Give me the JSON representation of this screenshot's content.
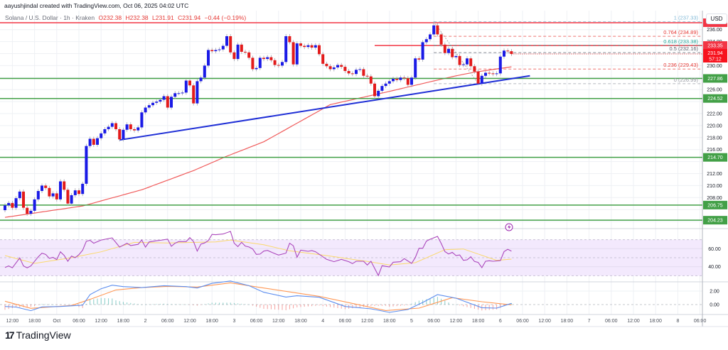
{
  "header": {
    "credit": "aayushjindal created with TradingView.com, Oct 06, 2025 04:02 UTC",
    "symbol": "Solana / U.S. Dollar · 1h · Kraken",
    "open": "O232.38",
    "high": "H232.38",
    "low": "L231.91",
    "close": "C231.94",
    "change": "−0.44 (−0.19%)"
  },
  "currency_label": "USD",
  "brand": {
    "name": "TradingView"
  },
  "colors": {
    "up": "#1a1ae6",
    "down": "#e31b1b",
    "ma": "#f05a5a",
    "trendline": "#1f2fd6",
    "support": "#43a047",
    "resistance": "#f23645",
    "rsi": "#ab47bc",
    "rsi_ma": "#fbd96b",
    "macd": "#5b8def",
    "signal": "#ff9855",
    "hist_up": "#26a69a",
    "hist_down": "#ef5350",
    "accent": "#2962ff"
  },
  "chart_data": {
    "type": "candlestick",
    "interval": "1h",
    "first_open": 205.9,
    "closes": [
      206.7,
      207.1,
      206.3,
      207.9,
      209.0,
      206.3,
      205.3,
      205.8,
      207.7,
      209.1,
      210.0,
      209.6,
      208.2,
      208.7,
      207.7,
      210.7,
      209.3,
      207.0,
      208.4,
      209.2,
      208.6,
      210.3,
      216.6,
      217.8,
      216.8,
      217.9,
      218.7,
      219.4,
      219.8,
      220.4,
      219.4,
      217.7,
      219.3,
      220.2,
      219.4,
      219.2,
      219.7,
      222.2,
      223.0,
      223.4,
      223.8,
      224.0,
      224.3,
      224.9,
      223.0,
      224.8,
      225.4,
      225.4,
      225.5,
      227.5,
      226.7,
      223.7,
      227.4,
      228.0,
      230.0,
      232.6,
      232.4,
      232.6,
      232.7,
      233.3,
      234.9,
      232.2,
      231.1,
      233.5,
      232.3,
      232.2,
      231.3,
      229.4,
      229.6,
      231.3,
      231.1,
      231.4,
      230.9,
      230.1,
      230.0,
      230.6,
      234.9,
      233.9,
      230.2,
      233.7,
      233.3,
      233.1,
      233.4,
      233.0,
      233.4,
      231.9,
      230.3,
      229.9,
      229.4,
      229.7,
      230.1,
      229.8,
      229.1,
      228.7,
      228.6,
      229.3,
      229.4,
      228.3,
      228.2,
      227.0,
      224.9,
      225.8,
      226.6,
      227.0,
      227.4,
      227.8,
      227.6,
      228.0,
      227.9,
      226.8,
      228.0,
      231.2,
      231.0,
      233.9,
      234.4,
      235.2,
      236.7,
      235.2,
      233.5,
      232.1,
      232.8,
      231.4,
      231.6,
      230.1,
      230.2,
      231.2,
      229.9,
      229.0,
      227.0,
      228.3,
      228.8,
      228.7,
      228.6,
      228.7,
      231.5,
      232.5,
      232.4,
      231.94
    ],
    "wick_extremes": [
      {
        "i": 116,
        "high": 237.33
      },
      {
        "i": 128,
        "low": 226.99
      }
    ],
    "moving_average": [
      [
        0,
        204.7
      ],
      [
        21,
        206.6
      ],
      [
        37,
        209.3
      ],
      [
        51,
        212.5
      ],
      [
        60,
        214.9
      ],
      [
        70,
        217.3
      ],
      [
        88,
        223.5
      ],
      [
        104,
        225.7
      ],
      [
        115,
        227.3
      ],
      [
        122,
        228.3
      ],
      [
        127,
        228.9
      ],
      [
        137,
        229.8
      ]
    ],
    "trendline": {
      "start": {
        "i": 31,
        "price": 217.6
      },
      "end": {
        "i": 142,
        "price": 228.3
      }
    },
    "horizontal_levels": [
      {
        "price": 237.15,
        "kind": "resistance",
        "label": ""
      },
      {
        "price": 233.35,
        "kind": "resistance",
        "label": "233.35",
        "from_i": 100
      },
      {
        "price": 227.86,
        "kind": "support",
        "label": "227.86"
      },
      {
        "price": 224.52,
        "kind": "support",
        "label": "224.52"
      },
      {
        "price": 214.7,
        "kind": "support",
        "label": "214.70"
      },
      {
        "price": 206.75,
        "kind": "support",
        "label": "206.75"
      },
      {
        "price": 204.23,
        "kind": "support",
        "label": "204.23"
      }
    ],
    "last_price": {
      "label": "231.94",
      "countdown": "57:12",
      "price": 231.94
    },
    "fibonacci": {
      "from_i": 116,
      "to_i": 128,
      "levels": [
        {
          "ratio": "1",
          "price": 237.33,
          "label": "1 (237.33)",
          "color": "#7fb8d6"
        },
        {
          "ratio": "0.764",
          "price": 234.89,
          "label": "0.764 (234.89)",
          "color": "#e53935"
        },
        {
          "ratio": "0.618",
          "price": 233.38,
          "label": "0.618 (233.38)",
          "color": "#26a69a"
        },
        {
          "ratio": "0.5",
          "price": 232.16,
          "label": "0.5 (232.16)",
          "color": "#555a66"
        },
        {
          "ratio": "0.236",
          "price": 229.43,
          "label": "0.236 (229.43)",
          "color": "#e53935"
        },
        {
          "ratio": "0",
          "price": 226.99,
          "label": "0 (226.99)",
          "color": "#9598a1"
        }
      ]
    },
    "price_axis": {
      "ticks": [
        "236.00",
        "234.00",
        "230.00",
        "226.00",
        "222.00",
        "220.00",
        "218.00",
        "216.00",
        "212.00",
        "210.00",
        "208.00"
      ],
      "range": [
        203.5,
        238
      ]
    },
    "time_axis": {
      "labels": [
        "12:00",
        "18:00",
        "Oct",
        "06:00",
        "12:00",
        "18:00",
        "2",
        "06:00",
        "12:00",
        "18:00",
        "3",
        "06:00",
        "12:00",
        "18:00",
        "4",
        "06:00",
        "12:00",
        "18:00",
        "5",
        "06:00",
        "12:00",
        "18:00",
        "6",
        "06:00",
        "12:00",
        "18:00",
        "7",
        "06:00",
        "12:00",
        "18:00",
        "8",
        "06:00"
      ]
    },
    "rsi": {
      "ticks": [
        "60.00",
        "40.00"
      ],
      "band": [
        30,
        70
      ],
      "values": [
        [
          0,
          39.2
        ],
        [
          1,
          40.9
        ],
        [
          2,
          38.8
        ],
        [
          4,
          49.8
        ],
        [
          5,
          40.9
        ],
        [
          6,
          38.8
        ],
        [
          7,
          40.9
        ],
        [
          9,
          51
        ],
        [
          10,
          55
        ],
        [
          11,
          53.7
        ],
        [
          12,
          49.3
        ],
        [
          13,
          50.4
        ],
        [
          14,
          47.9
        ],
        [
          15,
          56.5
        ],
        [
          16,
          52.6
        ],
        [
          17,
          46.1
        ],
        [
          18,
          51.8
        ],
        [
          19,
          50
        ],
        [
          20,
          53.4
        ],
        [
          21,
          58.3
        ],
        [
          22,
          68.2
        ],
        [
          23,
          69.3
        ],
        [
          24,
          66.1
        ],
        [
          26,
          69.6
        ],
        [
          29,
          72
        ],
        [
          31,
          61.7
        ],
        [
          33,
          66.1
        ],
        [
          34,
          63.5
        ],
        [
          36,
          64.8
        ],
        [
          37,
          69.6
        ],
        [
          38,
          61.7
        ],
        [
          39,
          67.5
        ],
        [
          41,
          68.8
        ],
        [
          42,
          69.3
        ],
        [
          44,
          70.6
        ],
        [
          45,
          62.7
        ],
        [
          46,
          66.1
        ],
        [
          47,
          67.9
        ],
        [
          49,
          67.9
        ],
        [
          50,
          72.3
        ],
        [
          51,
          67.9
        ],
        [
          52,
          57.3
        ],
        [
          53,
          65.1
        ],
        [
          54,
          66.4
        ],
        [
          55,
          69
        ],
        [
          56,
          75.8
        ],
        [
          57,
          75.5
        ],
        [
          59,
          76.3
        ],
        [
          61,
          79.2
        ],
        [
          62,
          66.1
        ],
        [
          63,
          62.4
        ],
        [
          64,
          67.1
        ],
        [
          65,
          62.9
        ],
        [
          66,
          61.9
        ],
        [
          67,
          59.7
        ],
        [
          68,
          53.7
        ],
        [
          69,
          54
        ],
        [
          70,
          57.3
        ],
        [
          71,
          58.1
        ],
        [
          73,
          54.5
        ],
        [
          74,
          52.9
        ],
        [
          76,
          55
        ],
        [
          77,
          66.1
        ],
        [
          78,
          63.2
        ],
        [
          79,
          50.5
        ],
        [
          80,
          58.4
        ],
        [
          82,
          57.1
        ],
        [
          83,
          57.9
        ],
        [
          84,
          56.6
        ],
        [
          87,
          48.2
        ],
        [
          89,
          45.6
        ],
        [
          91,
          48.2
        ],
        [
          93,
          45.6
        ],
        [
          94,
          43.5
        ],
        [
          95,
          46.1
        ],
        [
          97,
          46.1
        ],
        [
          98,
          41.9
        ],
        [
          99,
          46.1
        ],
        [
          101,
          30.2
        ],
        [
          102,
          41.1
        ],
        [
          104,
          39.8
        ],
        [
          105,
          45
        ],
        [
          107,
          45.6
        ],
        [
          108,
          49
        ],
        [
          110,
          43.7
        ],
        [
          111,
          50.2
        ],
        [
          112,
          60.5
        ],
        [
          113,
          60.5
        ],
        [
          114,
          68.4
        ],
        [
          115,
          70.5
        ],
        [
          117,
          73.6
        ],
        [
          118,
          65.8
        ],
        [
          119,
          56.8
        ],
        [
          120,
          54.2
        ],
        [
          121,
          56
        ],
        [
          122,
          52.4
        ],
        [
          123,
          53.1
        ],
        [
          124,
          47.1
        ],
        [
          125,
          47.6
        ],
        [
          126,
          51
        ],
        [
          127,
          45.8
        ],
        [
          128,
          44.8
        ],
        [
          129,
          39
        ],
        [
          130,
          46.1
        ],
        [
          131,
          46.6
        ],
        [
          132,
          46.1
        ],
        [
          134,
          46.8
        ],
        [
          135,
          56.8
        ],
        [
          136,
          59.4
        ],
        [
          137,
          57.3
        ]
      ],
      "ma": [
        [
          0,
          52.4
        ],
        [
          8,
          43.7
        ],
        [
          18,
          50
        ],
        [
          26,
          56.5
        ],
        [
          35,
          67
        ],
        [
          44,
          66.4
        ],
        [
          57,
          67.5
        ],
        [
          61,
          69.6
        ],
        [
          70,
          64.3
        ],
        [
          77,
          57.6
        ],
        [
          87,
          52.4
        ],
        [
          98,
          45.8
        ],
        [
          104,
          41.9
        ],
        [
          111,
          44.5
        ],
        [
          119,
          58.9
        ],
        [
          124,
          59.7
        ],
        [
          133,
          47.1
        ],
        [
          137,
          48.4
        ]
      ]
    },
    "macd": {
      "ticks": [
        "2.00",
        "0.00"
      ],
      "macd": [
        [
          0,
          -0.28
        ],
        [
          3,
          -0.37
        ],
        [
          7,
          -0.91
        ],
        [
          10,
          -0.35
        ],
        [
          15,
          -0.28
        ],
        [
          21,
          -0.1
        ],
        [
          23,
          1.47
        ],
        [
          26,
          2.35
        ],
        [
          29,
          2.87
        ],
        [
          32,
          2.66
        ],
        [
          37,
          2.52
        ],
        [
          43,
          2.8
        ],
        [
          49,
          2.66
        ],
        [
          52,
          2.45
        ],
        [
          56,
          3.15
        ],
        [
          61,
          3.5
        ],
        [
          66,
          2.8
        ],
        [
          70,
          1.82
        ],
        [
          76,
          1.12
        ],
        [
          79,
          1.3
        ],
        [
          85,
          1.08
        ],
        [
          92,
          -0.28
        ],
        [
          99,
          -0.63
        ],
        [
          104,
          -1.16
        ],
        [
          109,
          -0.74
        ],
        [
          113,
          0.32
        ],
        [
          117,
          1.47
        ],
        [
          122,
          0.95
        ],
        [
          129,
          -0.46
        ],
        [
          133,
          -0.53
        ],
        [
          137,
          0.18
        ]
      ],
      "signal": [
        [
          0,
          0.49
        ],
        [
          7,
          -0.56
        ],
        [
          18,
          -0.14
        ],
        [
          23,
          0.77
        ],
        [
          30,
          2.17
        ],
        [
          37,
          2.52
        ],
        [
          44,
          2.7
        ],
        [
          52,
          2.6
        ],
        [
          61,
          3.22
        ],
        [
          70,
          2.45
        ],
        [
          85,
          1.22
        ],
        [
          103,
          -0.88
        ],
        [
          112,
          -0.53
        ],
        [
          121,
          1.02
        ],
        [
          129,
          0.42
        ],
        [
          137,
          -0.04
        ]
      ]
    }
  }
}
